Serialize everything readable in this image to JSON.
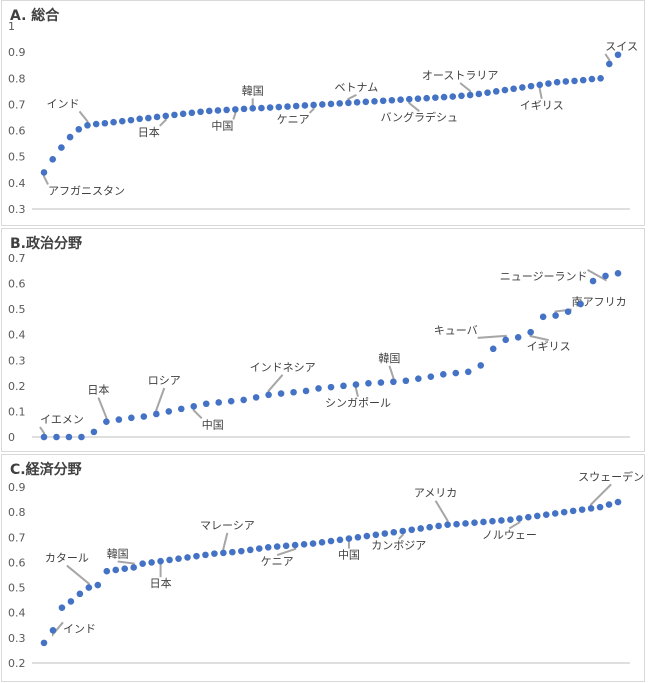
{
  "colors": {
    "point": "#4472c4",
    "axis": "#bfbfbf",
    "leader": "#a6a6a6",
    "text": "#404040"
  },
  "chart_data": [
    {
      "type": "scatter",
      "title": "A. 総合",
      "ylim": [
        0.3,
        1.0
      ],
      "yticks": [
        "0.3",
        "0.4",
        "0.5",
        "0.6",
        "0.7",
        "0.8",
        "0.9",
        "1"
      ],
      "grid": false,
      "values": [
        0.44,
        0.49,
        0.535,
        0.575,
        0.605,
        0.62,
        0.625,
        0.628,
        0.632,
        0.636,
        0.64,
        0.645,
        0.648,
        0.652,
        0.656,
        0.66,
        0.664,
        0.668,
        0.672,
        0.675,
        0.677,
        0.679,
        0.681,
        0.683,
        0.685,
        0.686,
        0.688,
        0.69,
        0.692,
        0.694,
        0.696,
        0.698,
        0.7,
        0.702,
        0.704,
        0.706,
        0.708,
        0.71,
        0.712,
        0.714,
        0.716,
        0.718,
        0.72,
        0.722,
        0.724,
        0.726,
        0.728,
        0.73,
        0.733,
        0.736,
        0.74,
        0.745,
        0.75,
        0.755,
        0.76,
        0.765,
        0.77,
        0.775,
        0.78,
        0.785,
        0.788,
        0.79,
        0.793,
        0.797,
        0.8,
        0.855,
        0.89
      ],
      "annotations": [
        {
          "label": "アフガニスタン",
          "index": 0
        },
        {
          "label": "インド",
          "index": 5
        },
        {
          "label": "日本",
          "index": 14
        },
        {
          "label": "中国",
          "index": 22
        },
        {
          "label": "韓国",
          "index": 24
        },
        {
          "label": "ケニア",
          "index": 31
        },
        {
          "label": "ベトナム",
          "index": 35
        },
        {
          "label": "バングラデシュ",
          "index": 42
        },
        {
          "label": "オーストラリア",
          "index": 49
        },
        {
          "label": "イギリス",
          "index": 57
        },
        {
          "label": "スイス",
          "index": 65
        }
      ]
    },
    {
      "type": "scatter",
      "title": "B.政治分野",
      "ylim": [
        0,
        0.7
      ],
      "yticks": [
        "0",
        "0.1",
        "0.2",
        "0.3",
        "0.4",
        "0.5",
        "0.6",
        "0.7"
      ],
      "grid": false,
      "values": [
        0.0,
        0.0,
        0.0,
        0.0,
        0.02,
        0.06,
        0.068,
        0.075,
        0.08,
        0.09,
        0.1,
        0.11,
        0.12,
        0.13,
        0.135,
        0.14,
        0.145,
        0.155,
        0.165,
        0.17,
        0.175,
        0.18,
        0.19,
        0.195,
        0.2,
        0.205,
        0.21,
        0.213,
        0.216,
        0.22,
        0.228,
        0.236,
        0.245,
        0.25,
        0.255,
        0.28,
        0.345,
        0.38,
        0.39,
        0.41,
        0.47,
        0.475,
        0.49,
        0.52,
        0.61,
        0.63,
        0.64
      ],
      "annotations": [
        {
          "label": "イエメン",
          "index": 0
        },
        {
          "label": "日本",
          "index": 5
        },
        {
          "label": "ロシア",
          "index": 9
        },
        {
          "label": "中国",
          "index": 12
        },
        {
          "label": "インドネシア",
          "index": 18
        },
        {
          "label": "シンガポール",
          "index": 25
        },
        {
          "label": "韓国",
          "index": 28
        },
        {
          "label": "キューバ",
          "index": 37
        },
        {
          "label": "イギリス",
          "index": 39
        },
        {
          "label": "南アフリカ",
          "index": 41
        },
        {
          "label": "ニュージーランド",
          "index": 45
        }
      ]
    },
    {
      "type": "scatter",
      "title": "C.経済分野",
      "ylim": [
        0.2,
        0.9
      ],
      "yticks": [
        "0.2",
        "0.3",
        "0.4",
        "0.5",
        "0.6",
        "0.7",
        "0.8",
        "0.9"
      ],
      "grid": false,
      "values": [
        0.28,
        0.33,
        0.42,
        0.445,
        0.475,
        0.5,
        0.51,
        0.565,
        0.57,
        0.575,
        0.58,
        0.595,
        0.6,
        0.605,
        0.61,
        0.615,
        0.62,
        0.625,
        0.63,
        0.635,
        0.638,
        0.641,
        0.645,
        0.65,
        0.655,
        0.66,
        0.663,
        0.666,
        0.669,
        0.672,
        0.675,
        0.68,
        0.685,
        0.69,
        0.695,
        0.7,
        0.705,
        0.71,
        0.715,
        0.72,
        0.725,
        0.73,
        0.735,
        0.74,
        0.745,
        0.75,
        0.752,
        0.755,
        0.758,
        0.761,
        0.764,
        0.767,
        0.77,
        0.775,
        0.78,
        0.785,
        0.79,
        0.795,
        0.8,
        0.805,
        0.81,
        0.815,
        0.82,
        0.83,
        0.84
      ],
      "annotations": [
        {
          "label": "インド",
          "index": 1
        },
        {
          "label": "カタール",
          "index": 5
        },
        {
          "label": "韓国",
          "index": 10
        },
        {
          "label": "日本",
          "index": 13
        },
        {
          "label": "マレーシア",
          "index": 20
        },
        {
          "label": "ケニア",
          "index": 28
        },
        {
          "label": "中国",
          "index": 34
        },
        {
          "label": "カンボジア",
          "index": 40
        },
        {
          "label": "アメリカ",
          "index": 45
        },
        {
          "label": "ノルウェー",
          "index": 53
        },
        {
          "label": "スウェーデン",
          "index": 61
        }
      ]
    }
  ]
}
